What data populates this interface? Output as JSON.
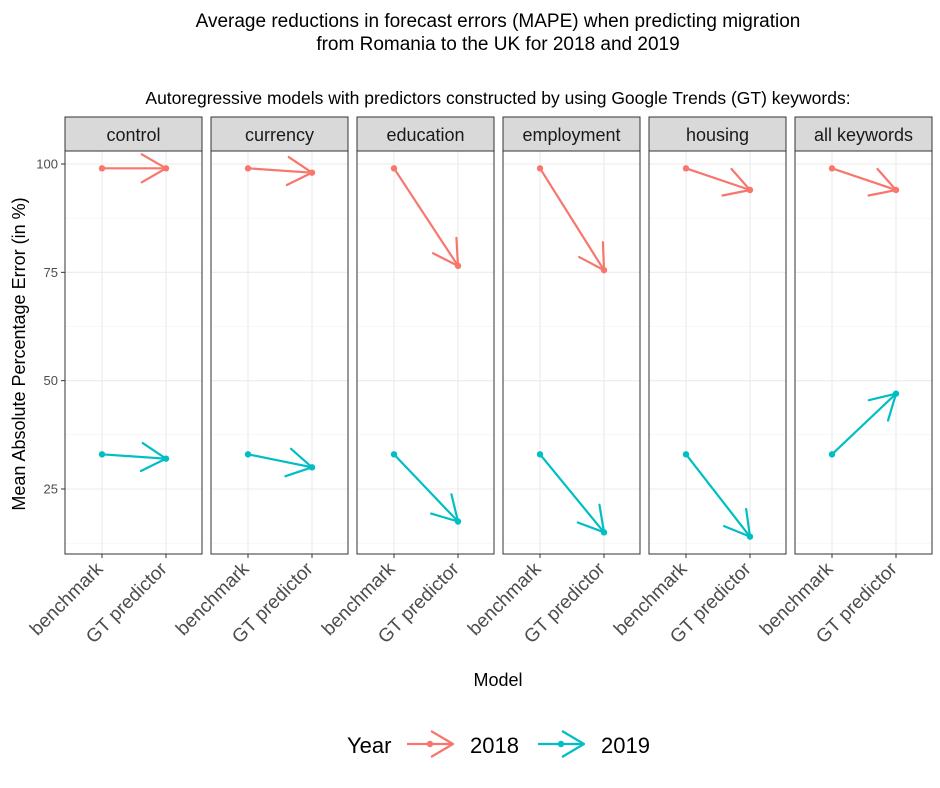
{
  "chart_data": {
    "type": "line",
    "title": "Average reductions in forecast errors (MAPE) when predicting migration\nfrom Romania to the UK for 2018 and 2019",
    "subtitle": "Autoregressive models with predictors constructed by using Google Trends (GT) keywords:",
    "xlabel": "Model",
    "ylabel": "Mean Absolute Percentage Error (in %)",
    "categories": [
      "benchmark",
      "GT predictor"
    ],
    "ylim": [
      10,
      103
    ],
    "yticks": [
      25,
      50,
      75,
      100
    ],
    "grid": true,
    "legend": {
      "title": "Year",
      "placement": "bottom"
    },
    "facets": [
      {
        "label": "control",
        "series": [
          {
            "name": "2018",
            "values": [
              99,
              99
            ]
          },
          {
            "name": "2019",
            "values": [
              33,
              32
            ]
          }
        ]
      },
      {
        "label": "currency",
        "series": [
          {
            "name": "2018",
            "values": [
              99,
              98
            ]
          },
          {
            "name": "2019",
            "values": [
              33,
              30
            ]
          }
        ]
      },
      {
        "label": "education",
        "series": [
          {
            "name": "2018",
            "values": [
              99,
              76.5
            ]
          },
          {
            "name": "2019",
            "values": [
              33,
              17.5
            ]
          }
        ]
      },
      {
        "label": "employment",
        "series": [
          {
            "name": "2018",
            "values": [
              99,
              75.5
            ]
          },
          {
            "name": "2019",
            "values": [
              33,
              15
            ]
          }
        ]
      },
      {
        "label": "housing",
        "series": [
          {
            "name": "2018",
            "values": [
              99,
              94
            ]
          },
          {
            "name": "2019",
            "values": [
              33,
              14
            ]
          }
        ]
      },
      {
        "label": "all keywords",
        "series": [
          {
            "name": "2018",
            "values": [
              99,
              94
            ]
          },
          {
            "name": "2019",
            "values": [
              33,
              47
            ]
          }
        ]
      }
    ],
    "colors": {
      "2018": "#F8766D",
      "2019": "#00BFC4"
    }
  }
}
